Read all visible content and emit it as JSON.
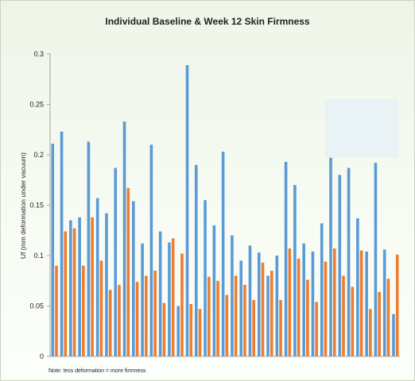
{
  "chart_data": {
    "type": "bar",
    "title": "Individual Baseline & Week 12 Skin Firmness",
    "xlabel": "",
    "ylabel": "Uf (mm deformation under vacuum)",
    "ylim": [
      0,
      0.3
    ],
    "y_ticks": [
      "0",
      "0.05",
      "0.1",
      "0.15",
      "0.2",
      "0.25",
      "0.3"
    ],
    "y_tick_values": [
      0,
      0.05,
      0.1,
      0.15,
      0.2,
      0.25,
      0.3
    ],
    "grid": false,
    "legend": "none",
    "note": "Note: less deformation = more firmness",
    "colors": {
      "baseline": "#5b9bd5",
      "week12": "#ed7d31"
    },
    "series": [
      {
        "color_key": "baseline",
        "values": [
          0.211,
          0.223,
          0.135,
          0.138,
          0.213,
          0.157,
          0.142,
          0.187,
          0.233,
          0.154,
          0.112,
          0.21,
          0.124,
          0.113,
          0.05,
          0.289,
          0.19,
          0.155,
          0.13,
          0.203,
          0.12,
          0.095,
          0.11,
          0.103,
          0.08,
          0.1,
          0.193,
          0.17,
          0.112,
          0.104,
          0.132,
          0.197,
          0.18,
          0.187,
          0.137,
          0.104,
          0.192,
          0.106,
          0.042
        ]
      },
      {
        "color_key": "week12",
        "values": [
          0.09,
          0.124,
          0.127,
          0.09,
          0.138,
          0.095,
          0.066,
          0.071,
          0.167,
          0.074,
          0.08,
          0.085,
          0.053,
          0.117,
          0.102,
          0.052,
          0.047,
          0.079,
          0.075,
          0.061,
          0.08,
          0.071,
          0.056,
          0.093,
          0.085,
          0.056,
          0.107,
          0.097,
          0.076,
          0.054,
          0.094,
          0.107,
          0.08,
          0.069,
          0.105,
          0.047,
          0.064,
          0.077,
          0.101
        ]
      }
    ]
  }
}
